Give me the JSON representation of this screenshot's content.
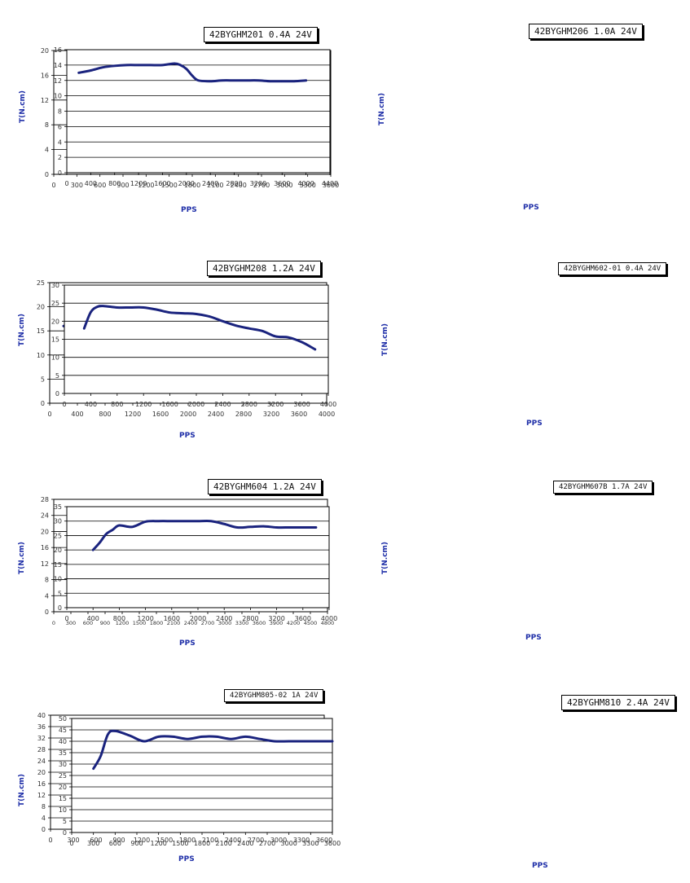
{
  "charts": [
    {
      "title": "42BYGHM201 0.4A 24V",
      "xlabel": "PPS",
      "ylabel": "T(N.cm)",
      "xticks": [
        0,
        300,
        600,
        900,
        1200,
        1500,
        1800,
        2100,
        2400,
        2700,
        3000,
        3300,
        3600
      ],
      "yticks": [
        0,
        4,
        8,
        12,
        16,
        20
      ]
    },
    {
      "title": "42BYGHM206 1.0A 24V",
      "xlabel": "PPS",
      "ylabel": "T(N.cm)",
      "xticks": [
        0,
        400,
        800,
        1200,
        1600,
        2000,
        2400,
        2800,
        3200,
        3600,
        4000,
        4400
      ],
      "yticks": [
        0,
        2,
        4,
        6,
        8,
        10,
        12,
        14,
        16
      ]
    },
    {
      "title": "42BYGHM208 1.2A 24V",
      "xlabel": "PPS",
      "ylabel": "T(N.cm)",
      "xticks": [
        0,
        400,
        800,
        1200,
        1600,
        2000,
        2400,
        2800,
        3200,
        3600,
        4000
      ],
      "yticks": [
        0,
        5,
        10,
        15,
        20,
        25
      ]
    },
    {
      "title": "42BYGHM602-01 0.4A 24V",
      "xlabel": "PPS",
      "ylabel": "T(N.cm)",
      "xticks": [
        0,
        400,
        800,
        1200,
        1600,
        2000,
        2400,
        2800,
        3200,
        3600,
        4000
      ],
      "yticks": [
        0,
        5,
        10,
        15,
        20,
        25,
        30
      ]
    },
    {
      "title": "42BYGHM604 1.2A 24V",
      "xlabel": "PPS",
      "ylabel": "T(N.cm)",
      "xticks": [
        0,
        300,
        600,
        900,
        1200,
        1500,
        1800,
        2100,
        2400,
        2700,
        3000,
        3300,
        3600,
        3900,
        4200,
        4500,
        4800
      ],
      "yticks": [
        0,
        4,
        8,
        12,
        16,
        20,
        24,
        28
      ]
    },
    {
      "title": "42BYGHM607B 1.7A 24V",
      "xlabel": "PPS",
      "ylabel": "T(N.cm)",
      "xticks": [
        0,
        400,
        800,
        1200,
        1600,
        2000,
        2400,
        2800,
        3200,
        3600,
        4000
      ],
      "yticks": [
        0,
        5,
        10,
        15,
        20,
        25,
        30,
        35
      ]
    },
    {
      "title": "42BYGHM805-02 1A 24V",
      "xlabel": "PPS",
      "ylabel": "T(N.cm)",
      "xticks": [
        0,
        300,
        600,
        900,
        1200,
        1500,
        1800,
        2100,
        2400,
        2700,
        3000,
        3300,
        3600
      ],
      "yticks": [
        0,
        4,
        8,
        12,
        16,
        20,
        24,
        28,
        32,
        36,
        40
      ]
    },
    {
      "title": "42BYGHM810 2.4A 24V",
      "xlabel": "PPS",
      "ylabel": "",
      "xticks": [
        0,
        300,
        600,
        900,
        1200,
        1500,
        1800,
        2100,
        2400,
        2700,
        3000,
        3300,
        3600
      ],
      "yticks": [
        0,
        5,
        10,
        15,
        20,
        25,
        30,
        35,
        40,
        45,
        50
      ]
    }
  ],
  "chart_data": [
    {
      "type": "line",
      "title": "42BYGHM201 0.4A 24V",
      "xlabel": "PPS",
      "ylabel": "T(N.cm)",
      "xlim": [
        0,
        3600
      ],
      "ylim": [
        0,
        20
      ],
      "grid": true,
      "x": [
        200,
        300,
        400,
        500,
        600,
        700,
        800,
        900,
        1000,
        1100,
        1200,
        1300,
        1400,
        1500,
        1600,
        1700,
        1800,
        1900,
        2000,
        2100,
        2200,
        2300,
        2400,
        2500,
        2600,
        2700,
        2800,
        2900,
        3000,
        3100,
        3200,
        3300,
        3400
      ],
      "y": [
        13.6,
        14.3,
        14.8,
        15.1,
        15.1,
        15.0,
        14.7,
        14.4,
        14.3,
        14.4,
        14.5,
        14.4,
        14.3,
        14.2,
        14.2,
        14.2,
        14.3,
        14.2,
        13.8,
        13.2,
        13.0,
        12.9,
        12.9,
        12.8,
        12.7,
        12.6,
        12.6,
        12.6,
        12.6,
        12.5,
        12.2,
        11.8,
        11.5
      ]
    },
    {
      "type": "line",
      "title": "42BYGHM206 1.0A 24V",
      "xlabel": "PPS",
      "ylabel": "T(N.cm)",
      "xlim": [
        0,
        4400
      ],
      "ylim": [
        0,
        16
      ],
      "grid": true,
      "x": [
        200,
        400,
        600,
        800,
        1000,
        1200,
        1400,
        1600,
        1800,
        1900,
        2000,
        2100,
        2200,
        2400,
        2600,
        2800,
        3000,
        3200,
        3400,
        3600,
        3800,
        4000
      ],
      "y": [
        13.0,
        13.3,
        13.7,
        13.9,
        14.0,
        14.0,
        14.0,
        14.0,
        14.2,
        14.0,
        13.5,
        12.6,
        12.0,
        11.9,
        12.0,
        12.0,
        12.0,
        12.0,
        11.9,
        11.9,
        11.9,
        12.0
      ]
    },
    {
      "type": "line",
      "title": "42BYGHM208 1.2A 24V",
      "xlabel": "PPS",
      "ylabel": "T(N.cm)",
      "xlim": [
        0,
        4000
      ],
      "ylim": [
        0,
        25
      ],
      "grid": true,
      "x": [
        200,
        400,
        600,
        800,
        1000,
        1200,
        1400,
        1600,
        1800,
        2000,
        2200,
        2400,
        2600,
        2800,
        3000,
        3200,
        3400,
        3600,
        3800
      ],
      "y": [
        16.0,
        17.0,
        18.0,
        18.0,
        18.0,
        19.0,
        18.4,
        19.0,
        19.3,
        19.0,
        18.6,
        18.2,
        18.0,
        18.2,
        18.3,
        18.0,
        18.0,
        18.0,
        17.8
      ]
    },
    {
      "type": "line",
      "title": "42BYGHM602-01 0.4A 24V",
      "xlabel": "PPS",
      "ylabel": "T(N.cm)",
      "xlim": [
        0,
        4000
      ],
      "ylim": [
        0,
        30
      ],
      "grid": true,
      "x": [
        300,
        400,
        500,
        600,
        800,
        1000,
        1200,
        1400,
        1600,
        1800,
        2000,
        2200,
        2400,
        2600,
        2800,
        3000,
        3200,
        3400,
        3600,
        3800
      ],
      "y": [
        18,
        22.5,
        24,
        24.2,
        23.8,
        23.8,
        23.8,
        23.2,
        22.4,
        22.2,
        22.0,
        21.3,
        20.0,
        18.8,
        18.0,
        17.3,
        15.8,
        15.5,
        14.2,
        12.2
      ]
    },
    {
      "type": "line",
      "title": "42BYGHM604 1.2A 24V",
      "xlabel": "PPS",
      "ylabel": "T(N.cm)",
      "xlim": [
        0,
        4800
      ],
      "ylim": [
        0,
        28
      ],
      "grid": true,
      "x": [
        300,
        450,
        600,
        750,
        900,
        1200,
        1500,
        1800,
        2100,
        2400,
        2700,
        3000,
        3300,
        3600,
        3900,
        4200,
        4600
      ],
      "y": [
        20.0,
        22.5,
        24.0,
        23.5,
        23.5,
        23.2,
        22.0,
        23.0,
        22.5,
        22.4,
        22.0,
        22.2,
        22.2,
        22.0,
        22.0,
        22.0,
        22.0
      ]
    },
    {
      "type": "line",
      "title": "42BYGHM607B 1.7A 24V",
      "xlabel": "PPS",
      "ylabel": "T(N.cm)",
      "xlim": [
        0,
        4000
      ],
      "ylim": [
        0,
        35
      ],
      "grid": true,
      "x": [
        400,
        500,
        600,
        700,
        800,
        1000,
        1200,
        1400,
        1600,
        1800,
        2000,
        2200,
        2400,
        2600,
        2800,
        3000,
        3200,
        3400,
        3600,
        3800
      ],
      "y": [
        20.0,
        22.5,
        25.5,
        27.0,
        28.5,
        28.0,
        29.8,
        30.0,
        30.0,
        30.0,
        30.0,
        30.0,
        29.0,
        27.8,
        28.0,
        28.2,
        27.8,
        27.8,
        27.8,
        27.8
      ]
    },
    {
      "type": "line",
      "title": "42BYGHM805-02 1A 24V",
      "xlabel": "PPS",
      "ylabel": "T(N.cm)",
      "xlim": [
        0,
        3600
      ],
      "ylim": [
        0,
        40
      ],
      "grid": true,
      "x": [
        300,
        600,
        900,
        1200,
        1500,
        1800,
        2100,
        2400,
        2700,
        3000,
        3300,
        3450
      ],
      "y": [
        33.0,
        34.2,
        34.5,
        35.0,
        34.8,
        34.0,
        33.0,
        32.5,
        32.3,
        32.0,
        31.0,
        30.5
      ]
    },
    {
      "type": "line",
      "title": "42BYGHM810 2.4A 24V",
      "xlabel": "PPS",
      "ylabel": "",
      "xlim": [
        0,
        3600
      ],
      "ylim": [
        0,
        50
      ],
      "grid": true,
      "x": [
        300,
        400,
        500,
        600,
        800,
        1000,
        1200,
        1400,
        1600,
        1800,
        2000,
        2200,
        2400,
        2600,
        2800,
        3000,
        3200,
        3600
      ],
      "y": [
        28.0,
        33.5,
        43.0,
        44.5,
        42.5,
        40.0,
        42.0,
        42.0,
        41.0,
        42.0,
        42.0,
        41.0,
        42.0,
        41.0,
        40.0,
        40.0,
        40.0,
        40.0
      ]
    }
  ]
}
